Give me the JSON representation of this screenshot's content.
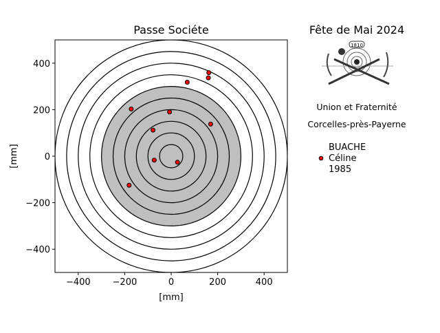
{
  "chart_data": {
    "type": "scatter",
    "title": "Passe Sociéte",
    "xlabel": "[mm]",
    "ylabel": "[mm]",
    "xlim": [
      -500,
      500
    ],
    "ylim": [
      -500,
      500
    ],
    "xticks": [
      -400,
      -200,
      0,
      200,
      400
    ],
    "yticks": [
      -400,
      -200,
      0,
      200,
      400
    ],
    "xtick_labels": [
      "−400",
      "−200",
      "0",
      "200",
      "400"
    ],
    "ytick_labels": [
      "−400",
      "−200",
      "0",
      "200",
      "400"
    ],
    "grid": false,
    "target": {
      "ring_radii": [
        50,
        100,
        150,
        200,
        250,
        300,
        350,
        400,
        450,
        500
      ],
      "black_radius": 300,
      "black_color": "#bfbfbf",
      "ring_color": "#000000"
    },
    "series": [
      {
        "name": "BUACHE\nCéline\n1985",
        "color": "#ff0000",
        "points": [
          [
            162,
            359
          ],
          [
            160,
            337
          ],
          [
            69,
            318
          ],
          [
            -172,
            203
          ],
          [
            -7,
            190
          ],
          [
            170,
            138
          ],
          [
            -78,
            112
          ],
          [
            -73,
            -17
          ],
          [
            27,
            -26
          ],
          [
            -181,
            -125
          ]
        ]
      }
    ],
    "legend_placement": "right"
  },
  "side_panel": {
    "title": "Fête de Mai 2024",
    "logo_text": "1810",
    "line1": "Union et Fraternité",
    "line2": "Corcelles-près-Payerne",
    "legend_lines": [
      "BUACHE",
      "Céline",
      "1985"
    ]
  }
}
